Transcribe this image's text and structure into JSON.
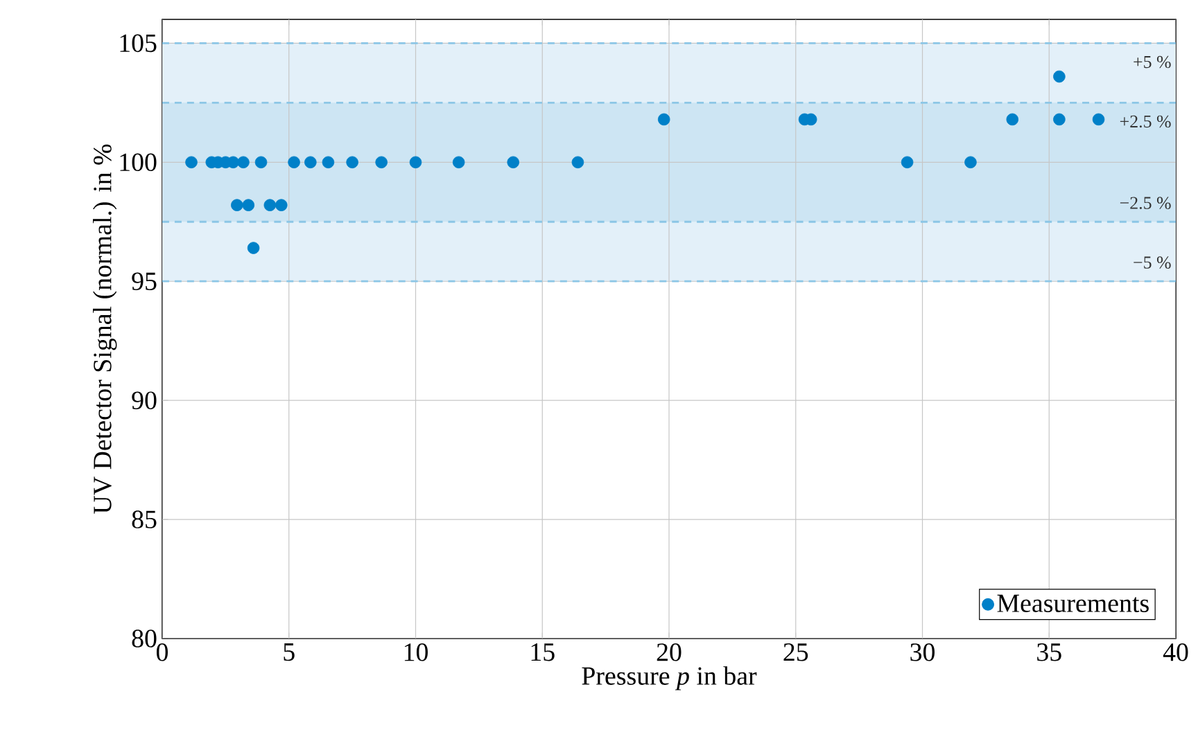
{
  "chart_data": {
    "type": "scatter",
    "xlabel": "Pressure *p* in bar",
    "ylabel": "UV Detector Signal (normal.) in %",
    "xlim": [
      0,
      40
    ],
    "ylim": [
      80,
      106
    ],
    "xticks": [
      0,
      5,
      10,
      15,
      20,
      25,
      30,
      35,
      40
    ],
    "yticks": [
      80,
      85,
      90,
      95,
      100,
      105
    ],
    "grid": true,
    "legend": "bottom right",
    "series": [
      {
        "name": "Measurements",
        "color": "#0080c8",
        "x": [
          1.15,
          1.95,
          2.2,
          2.5,
          2.8,
          3.2,
          3.9,
          5.2,
          5.85,
          6.55,
          7.5,
          8.65,
          10.0,
          11.7,
          13.85,
          16.4,
          2.95,
          3.4,
          4.25,
          4.7,
          3.6,
          19.8,
          25.35,
          25.6,
          29.4,
          31.9,
          33.55,
          35.4,
          35.4,
          36.95
        ],
        "values": [
          100,
          100,
          100,
          100,
          100,
          100,
          100,
          100,
          100,
          100,
          100,
          100,
          100,
          100,
          100,
          100,
          98.2,
          98.2,
          98.2,
          98.2,
          96.4,
          101.8,
          101.8,
          101.8,
          100,
          100,
          101.8,
          103.6,
          101.8,
          101.8
        ]
      }
    ],
    "bands": [
      {
        "axis": "y",
        "from": 95,
        "to": 105,
        "color": "#e3f0f9"
      },
      {
        "axis": "y",
        "from": 97.5,
        "to": 102.5,
        "color": "#cde5f3"
      }
    ],
    "annotations": [
      "+5 %",
      "+2.5 %",
      "−2.5 %",
      "−5 %"
    ]
  }
}
